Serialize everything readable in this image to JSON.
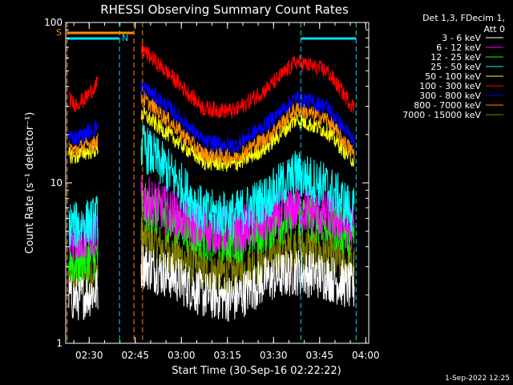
{
  "chart_data": {
    "type": "line",
    "title": "RHESSI Observing Summary Count Rates",
    "xlabel": "Start Time (30-Sep-16 02:22:22)",
    "ylabel": "Count Rate (s⁻¹ detector⁻¹)",
    "y_scale": "log",
    "ylim": [
      1,
      100
    ],
    "y_ticks": [
      "1",
      "10",
      "100"
    ],
    "xlim_minutes_after_02_22_22": [
      0,
      98.6
    ],
    "x_ticks": [
      "02:30",
      "02:45",
      "03:00",
      "03:15",
      "03:30",
      "03:45",
      "04:00"
    ],
    "x_tick_minutes": [
      7.63,
      22.63,
      37.63,
      52.63,
      67.63,
      82.63,
      97.63
    ],
    "legend_header": [
      "Det 1,3, FDecim 1,",
      "Att 0"
    ],
    "legend_position": "right",
    "data_gaps_minutes": [
      [
        10.5,
        24.5
      ]
    ],
    "markers": {
      "saa_label": "S",
      "night_label": "N",
      "saa_color": "#ff8c00",
      "night_color": "#00e0ff",
      "saa_bar_minutes": [
        0.5,
        22.2
      ],
      "night_bars_minutes": [
        [
          0.5,
          17.5
        ],
        [
          76.5,
          94.5
        ]
      ],
      "dashed_lines": [
        {
          "minute": 0.5,
          "color": "#ff8c00"
        },
        {
          "minute": 17.5,
          "color": "#00e0ff"
        },
        {
          "minute": 22.2,
          "color": "#ff8c00"
        },
        {
          "minute": 25.0,
          "color": "#ff8c00"
        },
        {
          "minute": 76.5,
          "color": "#00e0ff"
        },
        {
          "minute": 94.5,
          "color": "#00e0ff"
        }
      ]
    },
    "series": [
      {
        "name": "3 - 6 keV",
        "color": "#ffffff",
        "minutes": [
          1,
          3,
          6,
          9.5,
          25,
          35,
          45,
          55,
          65,
          75,
          85,
          94
        ],
        "values": [
          2.0,
          1.9,
          2.0,
          2.1,
          3.1,
          2.6,
          2.0,
          1.9,
          2.5,
          2.8,
          2.6,
          2.2
        ]
      },
      {
        "name": "6 - 12 keV",
        "color": "#ff00ff",
        "minutes": [
          1,
          3,
          6,
          9.5,
          25,
          35,
          45,
          55,
          65,
          75,
          85,
          94
        ],
        "values": [
          4.5,
          4.4,
          4.6,
          4.8,
          8.0,
          6.5,
          5.2,
          5.0,
          5.8,
          7.0,
          6.3,
          5.2
        ]
      },
      {
        "name": "12 - 25 keV",
        "color": "#00ff00",
        "minutes": [
          1,
          3,
          6,
          9.5,
          25,
          35,
          45,
          55,
          65,
          75,
          85,
          94
        ],
        "values": [
          3.3,
          3.2,
          3.4,
          3.5,
          7.2,
          5.8,
          4.6,
          4.4,
          5.2,
          6.4,
          5.7,
          4.6
        ]
      },
      {
        "name": "25 - 50 keV",
        "color": "#00ffff",
        "minutes": [
          1,
          3,
          6,
          9.5,
          25,
          35,
          45,
          55,
          65,
          75,
          85,
          94
        ],
        "values": [
          5.5,
          5.4,
          5.6,
          5.8,
          17.0,
          11.0,
          6.5,
          6.3,
          8.0,
          11.5,
          9.5,
          6.5
        ]
      },
      {
        "name": "50 - 100 keV",
        "color": "#ffff00",
        "minutes": [
          1,
          3,
          6,
          9.5,
          25,
          35,
          45,
          55,
          65,
          75,
          85,
          94
        ],
        "values": [
          15.0,
          14.5,
          15.5,
          16.0,
          27.0,
          19.0,
          13.5,
          13.0,
          16.5,
          25.0,
          21.0,
          13.5
        ]
      },
      {
        "name": "100 - 300 keV",
        "color": "#ff0000",
        "minutes": [
          1,
          3,
          6,
          9.5,
          25,
          35,
          45,
          55,
          65,
          75,
          85,
          94
        ],
        "values": [
          33.0,
          31.0,
          33.0,
          40.0,
          68.0,
          45.0,
          29.0,
          28.0,
          38.0,
          57.0,
          50.0,
          29.0
        ]
      },
      {
        "name": "300 - 800 keV",
        "color": "#0000ff",
        "minutes": [
          1,
          3,
          6,
          9.5,
          25,
          35,
          45,
          55,
          65,
          75,
          85,
          94
        ],
        "values": [
          20.0,
          19.0,
          20.0,
          22.0,
          40.0,
          28.0,
          18.0,
          17.0,
          23.0,
          34.0,
          30.0,
          18.0
        ]
      },
      {
        "name": "800 - 7000 keV",
        "color": "#ff8c00",
        "minutes": [
          1,
          3,
          6,
          9.5,
          25,
          35,
          45,
          55,
          65,
          75,
          85,
          94
        ],
        "values": [
          16.5,
          16.0,
          17.0,
          18.0,
          34.0,
          23.0,
          15.0,
          14.5,
          19.0,
          29.0,
          25.0,
          15.0
        ]
      },
      {
        "name": "7000 - 15000 keV",
        "color": "#808000",
        "minutes": [
          1,
          3,
          6,
          9.5,
          25,
          35,
          45,
          55,
          65,
          75,
          85,
          94
        ],
        "values": [
          2.7,
          2.6,
          2.8,
          2.9,
          4.5,
          3.6,
          2.8,
          2.7,
          3.3,
          4.0,
          3.6,
          2.9
        ]
      }
    ],
    "footer_date": "1-Sep-2022 12:25"
  }
}
